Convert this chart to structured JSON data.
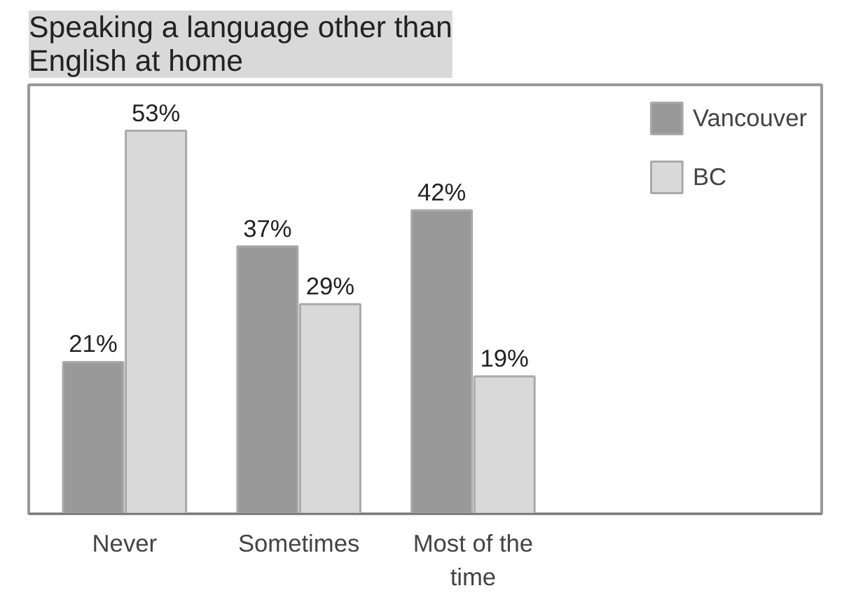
{
  "chart_data": {
    "type": "bar",
    "title": "Speaking a language other than English at home",
    "categories": [
      "Never",
      "Sometimes",
      "Most of the time"
    ],
    "series": [
      {
        "name": "Vancouver",
        "color": "#999999",
        "values": [
          21,
          37,
          42
        ],
        "value_labels": [
          "21%",
          "37%",
          "42%"
        ]
      },
      {
        "name": "BC",
        "color": "#d9d9d9",
        "values": [
          53,
          29,
          19
        ],
        "value_labels": [
          "53%",
          "29%",
          "19%"
        ]
      }
    ],
    "legend": "top right"
  }
}
